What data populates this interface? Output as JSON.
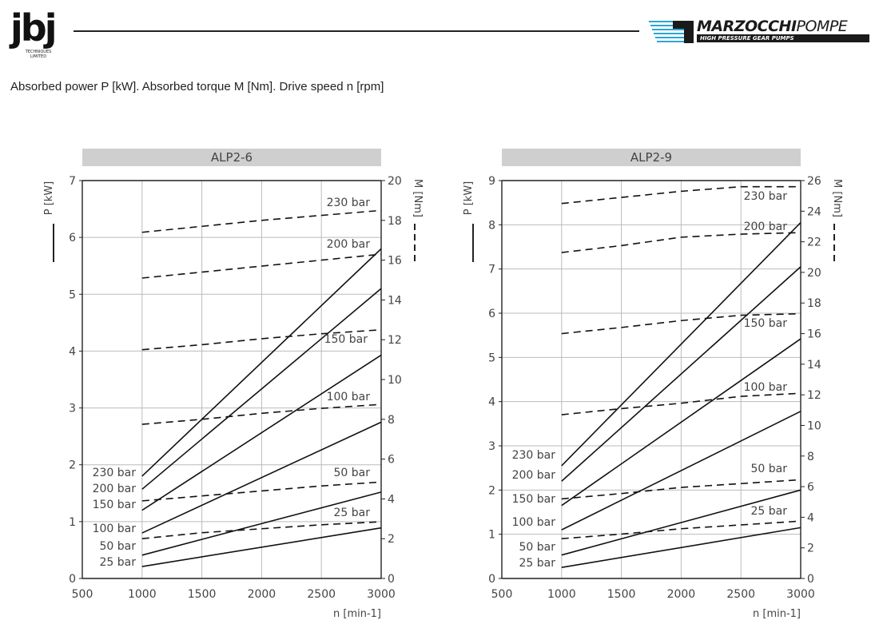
{
  "header": {
    "logo_left_text": "jbj",
    "logo_left_subtext": "TECHNIQUES LIMITED",
    "brand_name": "MARZOCCHI",
    "brand_name_suffix": "POMPE",
    "brand_tagline": "HIGH PRESSURE GEAR PUMPS"
  },
  "caption": "Absorbed power P [kW].   Absorbed torque M [Nm].   Drive speed n [rpm]",
  "chart_data": [
    {
      "type": "line",
      "title": "ALP2-6",
      "xlabel": "n [min-1]",
      "ylabel_left": "P [kW]",
      "ylabel_right": "M [Nm]",
      "xlim": [
        500,
        3000
      ],
      "xticks": [
        500,
        1000,
        1500,
        2000,
        2500,
        3000
      ],
      "ylim_left": [
        0,
        7
      ],
      "yticks_left": [
        0,
        1,
        2,
        3,
        4,
        5,
        6,
        7
      ],
      "ylim_right": [
        0,
        20
      ],
      "yticks_right": [
        0,
        2,
        4,
        6,
        8,
        10,
        12,
        14,
        16,
        18,
        20
      ],
      "grid": true,
      "legend": {
        "solid": "P [kW]",
        "dashed": "M [Nm]"
      },
      "power_series": [
        {
          "name": "25 bar",
          "x": [
            1000,
            3000
          ],
          "y": [
            0.21,
            0.89
          ]
        },
        {
          "name": "50 bar",
          "x": [
            1000,
            3000
          ],
          "y": [
            0.41,
            1.52
          ]
        },
        {
          "name": "100 bar",
          "x": [
            1000,
            3000
          ],
          "y": [
            0.8,
            2.75
          ]
        },
        {
          "name": "150 bar",
          "x": [
            1000,
            3000
          ],
          "y": [
            1.2,
            3.93
          ]
        },
        {
          "name": "200 bar",
          "x": [
            1000,
            3000
          ],
          "y": [
            1.57,
            5.1
          ]
        },
        {
          "name": "230 bar",
          "x": [
            1000,
            3000
          ],
          "y": [
            1.8,
            5.8
          ]
        }
      ],
      "torque_series": [
        {
          "name": "25 bar",
          "x": [
            1000,
            1500,
            2000,
            2500,
            3000
          ],
          "y": [
            2.0,
            2.3,
            2.5,
            2.7,
            2.85
          ]
        },
        {
          "name": "50 bar",
          "x": [
            1000,
            1500,
            2000,
            2500,
            3000
          ],
          "y": [
            3.9,
            4.15,
            4.4,
            4.65,
            4.85
          ]
        },
        {
          "name": "100 bar",
          "x": [
            1000,
            1500,
            2000,
            2500,
            3000
          ],
          "y": [
            7.75,
            8.0,
            8.3,
            8.55,
            8.75
          ]
        },
        {
          "name": "150 bar",
          "x": [
            1000,
            1500,
            2000,
            2500,
            3000
          ],
          "y": [
            11.5,
            11.75,
            12.05,
            12.3,
            12.5
          ]
        },
        {
          "name": "200 bar",
          "x": [
            1000,
            1500,
            2000,
            2500,
            3000
          ],
          "y": [
            15.1,
            15.4,
            15.7,
            16.0,
            16.3
          ]
        },
        {
          "name": "230 bar",
          "x": [
            1000,
            1500,
            2000,
            2500,
            3000
          ],
          "y": [
            17.4,
            17.7,
            18.0,
            18.25,
            18.5
          ]
        }
      ],
      "left_labels": [
        "230 bar",
        "200 bar",
        "150 bar",
        "100 bar",
        "50 bar",
        "25 bar"
      ],
      "right_labels": [
        "230 bar",
        "200 bar",
        "150 bar",
        "100 bar",
        "50 bar",
        "25 bar"
      ]
    },
    {
      "type": "line",
      "title": "ALP2-9",
      "xlabel": "n [min-1]",
      "ylabel_left": "P [kW]",
      "ylabel_right": "M [Nm]",
      "xlim": [
        500,
        3000
      ],
      "xticks": [
        500,
        1000,
        1500,
        2000,
        2500,
        3000
      ],
      "ylim_left": [
        0,
        9
      ],
      "yticks_left": [
        0,
        1,
        2,
        3,
        4,
        5,
        6,
        7,
        8,
        9
      ],
      "ylim_right": [
        0,
        26
      ],
      "yticks_right": [
        0,
        2,
        4,
        6,
        8,
        10,
        12,
        14,
        16,
        18,
        20,
        22,
        24,
        26
      ],
      "grid": true,
      "legend": {
        "solid": "P [kW]",
        "dashed": "M [Nm]"
      },
      "power_series": [
        {
          "name": "25 bar",
          "x": [
            1000,
            3000
          ],
          "y": [
            0.25,
            1.15
          ]
        },
        {
          "name": "50 bar",
          "x": [
            1000,
            3000
          ],
          "y": [
            0.53,
            2.0
          ]
        },
        {
          "name": "100 bar",
          "x": [
            1000,
            3000
          ],
          "y": [
            1.1,
            3.78
          ]
        },
        {
          "name": "150 bar",
          "x": [
            1000,
            3000
          ],
          "y": [
            1.65,
            5.42
          ]
        },
        {
          "name": "200 bar",
          "x": [
            1000,
            3000
          ],
          "y": [
            2.2,
            7.05
          ]
        },
        {
          "name": "230 bar",
          "x": [
            1000,
            3000
          ],
          "y": [
            2.55,
            8.05
          ]
        }
      ],
      "torque_series": [
        {
          "name": "25 bar",
          "x": [
            1000,
            1500,
            2000,
            2500,
            3000
          ],
          "y": [
            2.6,
            2.9,
            3.25,
            3.5,
            3.75
          ]
        },
        {
          "name": "50 bar",
          "x": [
            1000,
            1500,
            2000,
            2500,
            3000
          ],
          "y": [
            5.2,
            5.55,
            5.95,
            6.2,
            6.45
          ]
        },
        {
          "name": "100 bar",
          "x": [
            1000,
            1500,
            2000,
            2500,
            3000
          ],
          "y": [
            10.7,
            11.1,
            11.45,
            11.9,
            12.1
          ]
        },
        {
          "name": "150 bar",
          "x": [
            1000,
            1500,
            2000,
            2500,
            3000
          ],
          "y": [
            16.0,
            16.4,
            16.85,
            17.2,
            17.3
          ]
        },
        {
          "name": "200 bar",
          "x": [
            1000,
            1500,
            2000,
            2500,
            3000
          ],
          "y": [
            21.3,
            21.75,
            22.3,
            22.5,
            22.6
          ]
        },
        {
          "name": "230 bar",
          "x": [
            1000,
            1500,
            2000,
            2500,
            3000
          ],
          "y": [
            24.5,
            24.9,
            25.3,
            25.6,
            25.6
          ]
        }
      ],
      "left_labels": [
        "230 bar",
        "200 bar",
        "150 bar",
        "100 bar",
        "50 bar",
        "25 bar"
      ],
      "right_labels": [
        "230 bar",
        "200 bar",
        "150 bar",
        "100 bar",
        "50 bar",
        "25 bar"
      ]
    }
  ]
}
